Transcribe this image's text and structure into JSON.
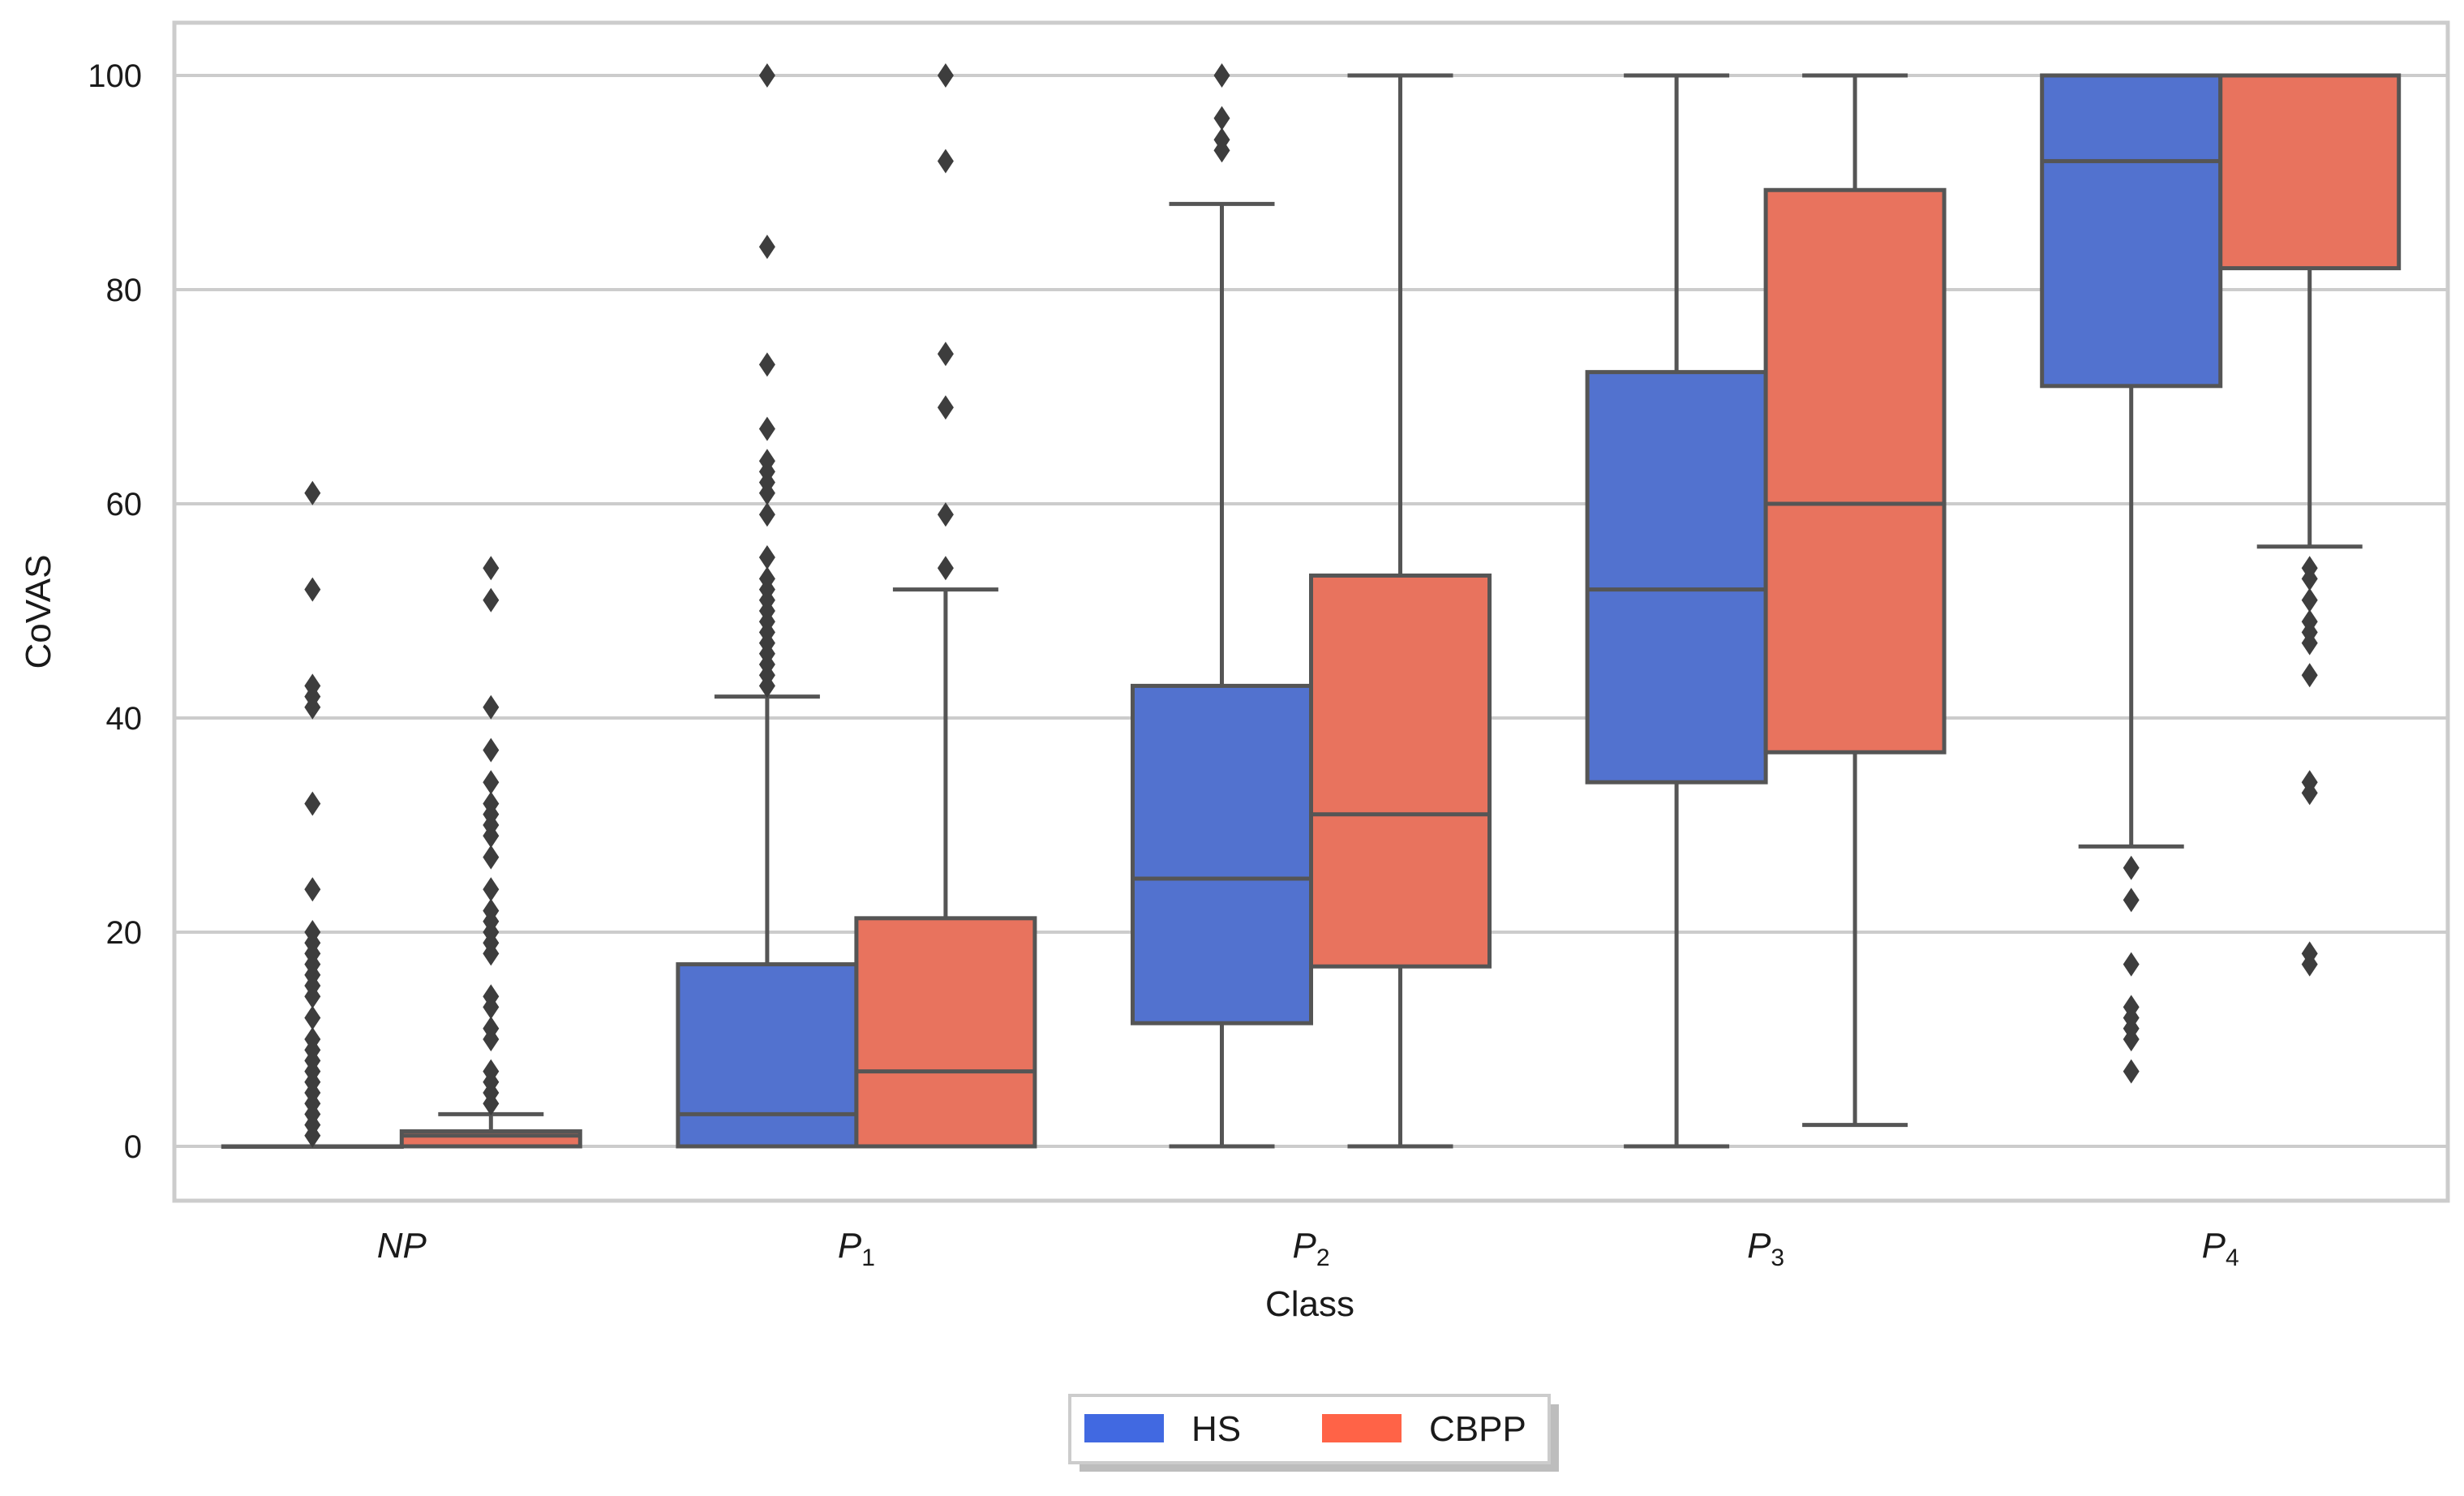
{
  "chart_data": {
    "type": "boxplot",
    "title": "",
    "xlabel": "Class",
    "ylabel": "CoVAS",
    "ylim": [
      -5,
      105
    ],
    "yticks": [
      0,
      20,
      40,
      60,
      80,
      100
    ],
    "grid": "horizontal",
    "legend_position": "bottom-center",
    "categories": [
      {
        "base": "NP",
        "sub": ""
      },
      {
        "base": "P",
        "sub": "1"
      },
      {
        "base": "P",
        "sub": "2"
      },
      {
        "base": "P",
        "sub": "3"
      },
      {
        "base": "P",
        "sub": "4"
      }
    ],
    "series": [
      {
        "name": "HS",
        "color": "#5272cf",
        "legend_color": "#4169e1",
        "boxes": [
          {
            "whislo": 0,
            "q1": 0,
            "med": 0,
            "q3": 0,
            "whishi": 0,
            "fliers": [
              1,
              2,
              3,
              4,
              5,
              6,
              7,
              8,
              9,
              10,
              12,
              14,
              15,
              16,
              17,
              18,
              19,
              20,
              24,
              32,
              41,
              42,
              43,
              52,
              61
            ]
          },
          {
            "whislo": 0,
            "q1": 0,
            "med": 3,
            "q3": 17,
            "whishi": 42,
            "fliers": [
              43,
              44,
              45,
              46,
              47,
              48,
              49,
              50,
              51,
              52,
              53,
              55,
              59,
              61,
              62,
              63,
              64,
              67,
              73,
              84,
              100
            ]
          },
          {
            "whislo": 0,
            "q1": 11.5,
            "med": 25,
            "q3": 43,
            "whishi": 88,
            "fliers": [
              93,
              94,
              96,
              100
            ]
          },
          {
            "whislo": 0,
            "q1": 34,
            "med": 52,
            "q3": 72.3,
            "whishi": 100,
            "fliers": []
          },
          {
            "whislo": 28,
            "q1": 71,
            "med": 92,
            "q3": 100,
            "whishi": 100,
            "fliers": [
              7,
              10,
              11,
              12,
              13,
              17,
              23,
              26
            ]
          }
        ]
      },
      {
        "name": "CBPP",
        "color": "#e8735e",
        "legend_color": "#ff6347",
        "boxes": [
          {
            "whislo": 0,
            "q1": 0,
            "med": 1,
            "q3": 1.4,
            "whishi": 3,
            "fliers": [
              4,
              5,
              6,
              7,
              10,
              11,
              13,
              14,
              18,
              19,
              20,
              21,
              22,
              24,
              27,
              29,
              30,
              31,
              32,
              34,
              37,
              41,
              51,
              54
            ]
          },
          {
            "whislo": 0,
            "q1": 0,
            "med": 7,
            "q3": 21.3,
            "whishi": 52,
            "fliers": [
              54,
              59,
              69,
              74,
              92,
              100
            ]
          },
          {
            "whislo": 0,
            "q1": 16.8,
            "med": 31,
            "q3": 53.3,
            "whishi": 100,
            "fliers": []
          },
          {
            "whislo": 2,
            "q1": 36.8,
            "med": 60,
            "q3": 89.3,
            "whishi": 100,
            "fliers": []
          },
          {
            "whislo": 56,
            "q1": 82,
            "med": 100,
            "q3": 100,
            "whishi": 100,
            "fliers": [
              17,
              18,
              33,
              34,
              44,
              47,
              48,
              49,
              51,
              53,
              54
            ]
          }
        ]
      }
    ]
  }
}
